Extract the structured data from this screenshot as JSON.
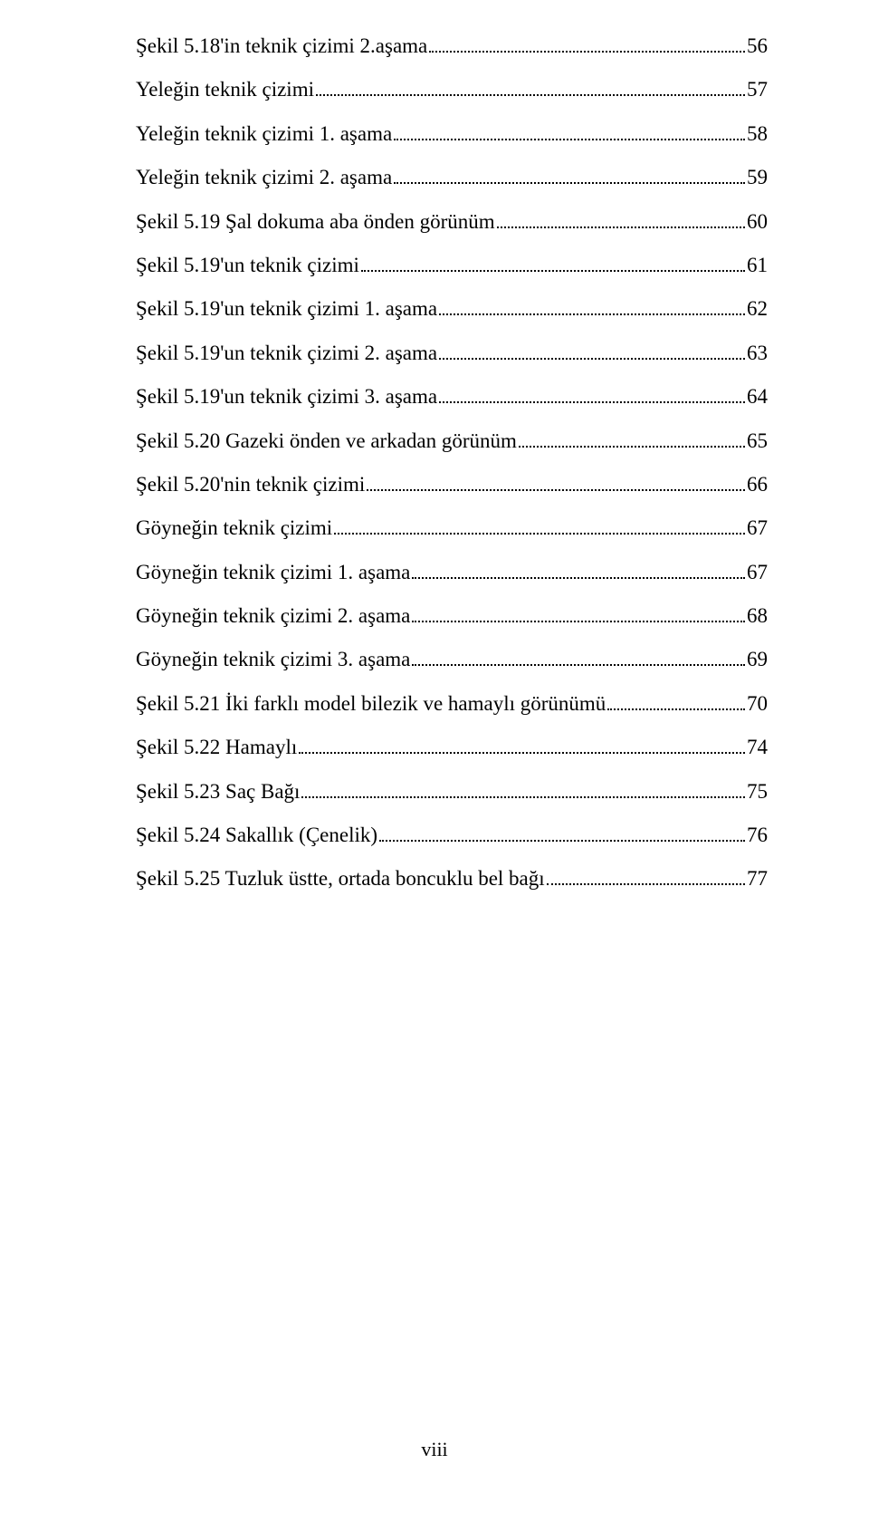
{
  "page_footer": "viii",
  "toc": [
    {
      "label": "Şekil 5.18'in teknik çizimi 2.aşama",
      "page": "56"
    },
    {
      "label": "Yeleğin teknik çizimi",
      "page": "57"
    },
    {
      "label": "Yeleğin teknik çizimi 1. aşama",
      "page": "58"
    },
    {
      "label": "Yeleğin teknik çizimi 2. aşama",
      "page": "59"
    },
    {
      "label": "Şekil 5.19 Şal dokuma aba önden görünüm",
      "page": "60"
    },
    {
      "label": "Şekil 5.19'un teknik çizimi",
      "page": "61"
    },
    {
      "label": "Şekil 5.19'un teknik çizimi 1. aşama",
      "page": "62"
    },
    {
      "label": "Şekil 5.19'un teknik çizimi 2. aşama",
      "page": "63"
    },
    {
      "label": "Şekil 5.19'un teknik çizimi 3. aşama",
      "page": "64"
    },
    {
      "label": "Şekil 5.20 Gazeki önden ve arkadan görünüm",
      "page": "65"
    },
    {
      "label": "Şekil 5.20'nin teknik çizimi",
      "page": "66"
    },
    {
      "label": "Göyneğin teknik çizimi",
      "page": "67"
    },
    {
      "label": "Göyneğin teknik çizimi 1. aşama",
      "page": "67"
    },
    {
      "label": "Göyneğin teknik çizimi 2. aşama",
      "page": "68"
    },
    {
      "label": "Göyneğin teknik çizimi 3. aşama",
      "page": "69"
    },
    {
      "label": "Şekil 5.21 İki farklı model bilezik ve hamaylı görünümü",
      "page": "70"
    },
    {
      "label": "Şekil 5.22 Hamaylı",
      "page": "74"
    },
    {
      "label": "Şekil 5.23 Saç Bağı",
      "page": "75"
    },
    {
      "label": "Şekil 5.24 Sakallık (Çenelik)",
      "page": "76"
    },
    {
      "label": "Şekil 5.25 Tuzluk üstte, ortada boncuklu bel bağı",
      "page": "77"
    }
  ]
}
